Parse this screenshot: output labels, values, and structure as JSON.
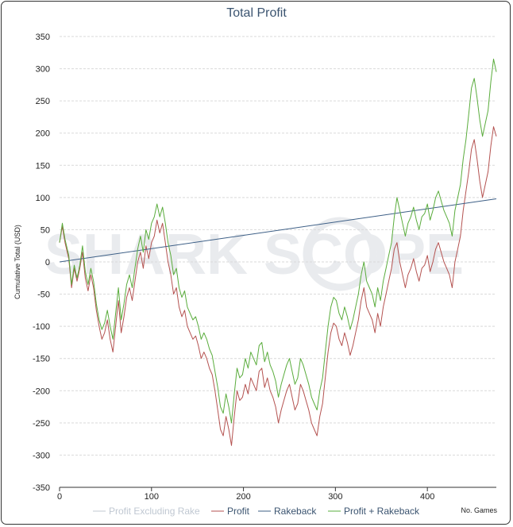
{
  "watermark": "SHARK SCOPE",
  "chart_data": {
    "type": "line",
    "title": "Total Profit",
    "ylabel": "Cumulative Total (USD)",
    "xlabel": "No. Games",
    "xlim": [
      0,
      475
    ],
    "ylim": [
      -350,
      350
    ],
    "xticks": [
      0,
      100,
      200,
      300,
      400
    ],
    "yticks": [
      -350,
      -300,
      -250,
      -200,
      -150,
      -100,
      -50,
      0,
      50,
      100,
      150,
      200,
      250,
      300,
      350
    ],
    "grid": true,
    "legend_position": "bottom",
    "series": [
      {
        "name": "Profit Excluding Rake",
        "color": "#c0c8d2",
        "visible": false,
        "points": []
      },
      {
        "name": "Profit",
        "color": "#b45250",
        "points": [
          [
            0,
            30
          ],
          [
            3,
            55
          ],
          [
            6,
            30
          ],
          [
            10,
            5
          ],
          [
            13,
            -40
          ],
          [
            16,
            -10
          ],
          [
            19,
            -30
          ],
          [
            22,
            -10
          ],
          [
            25,
            15
          ],
          [
            28,
            -25
          ],
          [
            31,
            -45
          ],
          [
            34,
            -20
          ],
          [
            37,
            -40
          ],
          [
            40,
            -75
          ],
          [
            43,
            -100
          ],
          [
            46,
            -120
          ],
          [
            49,
            -110
          ],
          [
            52,
            -90
          ],
          [
            55,
            -120
          ],
          [
            58,
            -140
          ],
          [
            61,
            -100
          ],
          [
            64,
            -60
          ],
          [
            67,
            -110
          ],
          [
            70,
            -85
          ],
          [
            73,
            -55
          ],
          [
            76,
            -40
          ],
          [
            79,
            -60
          ],
          [
            82,
            -30
          ],
          [
            85,
            0
          ],
          [
            88,
            15
          ],
          [
            91,
            -10
          ],
          [
            94,
            25
          ],
          [
            97,
            5
          ],
          [
            100,
            30
          ],
          [
            103,
            40
          ],
          [
            106,
            65
          ],
          [
            109,
            45
          ],
          [
            112,
            60
          ],
          [
            115,
            30
          ],
          [
            118,
            0
          ],
          [
            121,
            -20
          ],
          [
            124,
            -50
          ],
          [
            127,
            -40
          ],
          [
            130,
            -70
          ],
          [
            133,
            -85
          ],
          [
            136,
            -75
          ],
          [
            139,
            -100
          ],
          [
            142,
            -110
          ],
          [
            145,
            -120
          ],
          [
            148,
            -115
          ],
          [
            151,
            -130
          ],
          [
            154,
            -150
          ],
          [
            157,
            -140
          ],
          [
            160,
            -150
          ],
          [
            163,
            -165
          ],
          [
            166,
            -175
          ],
          [
            169,
            -200
          ],
          [
            172,
            -230
          ],
          [
            175,
            -260
          ],
          [
            178,
            -270
          ],
          [
            181,
            -240
          ],
          [
            184,
            -260
          ],
          [
            187,
            -285
          ],
          [
            190,
            -240
          ],
          [
            193,
            -200
          ],
          [
            196,
            -215
          ],
          [
            199,
            -210
          ],
          [
            202,
            -190
          ],
          [
            205,
            -205
          ],
          [
            208,
            -180
          ],
          [
            211,
            -190
          ],
          [
            214,
            -200
          ],
          [
            217,
            -170
          ],
          [
            220,
            -165
          ],
          [
            223,
            -195
          ],
          [
            226,
            -180
          ],
          [
            229,
            -200
          ],
          [
            232,
            -210
          ],
          [
            235,
            -225
          ],
          [
            238,
            -250
          ],
          [
            241,
            -230
          ],
          [
            244,
            -215
          ],
          [
            247,
            -200
          ],
          [
            250,
            -190
          ],
          [
            253,
            -210
          ],
          [
            256,
            -230
          ],
          [
            259,
            -220
          ],
          [
            262,
            -190
          ],
          [
            265,
            -200
          ],
          [
            268,
            -215
          ],
          [
            271,
            -230
          ],
          [
            274,
            -250
          ],
          [
            277,
            -260
          ],
          [
            280,
            -270
          ],
          [
            283,
            -240
          ],
          [
            286,
            -220
          ],
          [
            289,
            -180
          ],
          [
            292,
            -140
          ],
          [
            295,
            -110
          ],
          [
            298,
            -95
          ],
          [
            301,
            -100
          ],
          [
            304,
            -120
          ],
          [
            307,
            -130
          ],
          [
            310,
            -110
          ],
          [
            313,
            -125
          ],
          [
            316,
            -145
          ],
          [
            319,
            -130
          ],
          [
            322,
            -110
          ],
          [
            325,
            -90
          ],
          [
            328,
            -60
          ],
          [
            331,
            -40
          ],
          [
            334,
            -70
          ],
          [
            337,
            -80
          ],
          [
            340,
            -90
          ],
          [
            343,
            -110
          ],
          [
            346,
            -80
          ],
          [
            349,
            -100
          ],
          [
            352,
            -70
          ],
          [
            355,
            -50
          ],
          [
            358,
            -30
          ],
          [
            361,
            -10
          ],
          [
            364,
            20
          ],
          [
            367,
            30
          ],
          [
            370,
            0
          ],
          [
            373,
            -20
          ],
          [
            376,
            -40
          ],
          [
            379,
            -20
          ],
          [
            382,
            -10
          ],
          [
            385,
            5
          ],
          [
            388,
            -15
          ],
          [
            391,
            -30
          ],
          [
            394,
            -10
          ],
          [
            397,
            -5
          ],
          [
            400,
            10
          ],
          [
            403,
            -15
          ],
          [
            406,
            0
          ],
          [
            409,
            20
          ],
          [
            412,
            30
          ],
          [
            415,
            15
          ],
          [
            418,
            0
          ],
          [
            421,
            -10
          ],
          [
            424,
            -20
          ],
          [
            427,
            -40
          ],
          [
            430,
            0
          ],
          [
            433,
            20
          ],
          [
            436,
            40
          ],
          [
            439,
            80
          ],
          [
            442,
            110
          ],
          [
            445,
            140
          ],
          [
            448,
            175
          ],
          [
            451,
            190
          ],
          [
            454,
            160
          ],
          [
            457,
            125
          ],
          [
            460,
            100
          ],
          [
            463,
            120
          ],
          [
            466,
            140
          ],
          [
            469,
            180
          ],
          [
            472,
            210
          ],
          [
            475,
            195
          ]
        ]
      },
      {
        "name": "Rakeback",
        "color": "#3d5f86",
        "points": [
          [
            0,
            0
          ],
          [
            475,
            98
          ]
        ]
      },
      {
        "name": "Profit + Rakeback",
        "color": "#5aac3c",
        "points": [
          [
            0,
            30
          ],
          [
            3,
            60
          ],
          [
            6,
            35
          ],
          [
            10,
            10
          ],
          [
            13,
            -35
          ],
          [
            16,
            -5
          ],
          [
            19,
            -25
          ],
          [
            22,
            -5
          ],
          [
            25,
            25
          ],
          [
            28,
            -15
          ],
          [
            31,
            -35
          ],
          [
            34,
            -10
          ],
          [
            37,
            -30
          ],
          [
            40,
            -65
          ],
          [
            43,
            -90
          ],
          [
            46,
            -105
          ],
          [
            49,
            -95
          ],
          [
            52,
            -75
          ],
          [
            55,
            -100
          ],
          [
            58,
            -120
          ],
          [
            61,
            -80
          ],
          [
            64,
            -40
          ],
          [
            67,
            -90
          ],
          [
            70,
            -65
          ],
          [
            73,
            -35
          ],
          [
            76,
            -20
          ],
          [
            79,
            -40
          ],
          [
            82,
            -10
          ],
          [
            85,
            20
          ],
          [
            88,
            40
          ],
          [
            91,
            15
          ],
          [
            94,
            50
          ],
          [
            97,
            35
          ],
          [
            100,
            60
          ],
          [
            103,
            70
          ],
          [
            106,
            90
          ],
          [
            109,
            70
          ],
          [
            112,
            85
          ],
          [
            115,
            60
          ],
          [
            118,
            30
          ],
          [
            121,
            10
          ],
          [
            124,
            -20
          ],
          [
            127,
            -10
          ],
          [
            130,
            -40
          ],
          [
            133,
            -55
          ],
          [
            136,
            -45
          ],
          [
            139,
            -70
          ],
          [
            142,
            -80
          ],
          [
            145,
            -90
          ],
          [
            148,
            -85
          ],
          [
            151,
            -100
          ],
          [
            154,
            -120
          ],
          [
            157,
            -110
          ],
          [
            160,
            -120
          ],
          [
            163,
            -135
          ],
          [
            166,
            -145
          ],
          [
            169,
            -170
          ],
          [
            172,
            -195
          ],
          [
            175,
            -225
          ],
          [
            178,
            -235
          ],
          [
            181,
            -205
          ],
          [
            184,
            -225
          ],
          [
            187,
            -250
          ],
          [
            190,
            -205
          ],
          [
            193,
            -165
          ],
          [
            196,
            -180
          ],
          [
            199,
            -175
          ],
          [
            202,
            -150
          ],
          [
            205,
            -165
          ],
          [
            208,
            -140
          ],
          [
            211,
            -150
          ],
          [
            214,
            -160
          ],
          [
            217,
            -130
          ],
          [
            220,
            -125
          ],
          [
            223,
            -155
          ],
          [
            226,
            -140
          ],
          [
            229,
            -160
          ],
          [
            232,
            -170
          ],
          [
            235,
            -185
          ],
          [
            238,
            -210
          ],
          [
            241,
            -190
          ],
          [
            244,
            -175
          ],
          [
            247,
            -160
          ],
          [
            250,
            -150
          ],
          [
            253,
            -170
          ],
          [
            256,
            -190
          ],
          [
            259,
            -180
          ],
          [
            262,
            -150
          ],
          [
            265,
            -160
          ],
          [
            268,
            -175
          ],
          [
            271,
            -190
          ],
          [
            274,
            -210
          ],
          [
            277,
            -220
          ],
          [
            280,
            -230
          ],
          [
            283,
            -200
          ],
          [
            286,
            -180
          ],
          [
            289,
            -140
          ],
          [
            292,
            -100
          ],
          [
            295,
            -70
          ],
          [
            298,
            -55
          ],
          [
            301,
            -60
          ],
          [
            304,
            -80
          ],
          [
            307,
            -90
          ],
          [
            310,
            -70
          ],
          [
            313,
            -85
          ],
          [
            316,
            -105
          ],
          [
            319,
            -90
          ],
          [
            322,
            -70
          ],
          [
            325,
            -50
          ],
          [
            328,
            -20
          ],
          [
            331,
            0
          ],
          [
            334,
            -30
          ],
          [
            337,
            -40
          ],
          [
            340,
            -50
          ],
          [
            343,
            -70
          ],
          [
            346,
            -40
          ],
          [
            349,
            -60
          ],
          [
            352,
            -30
          ],
          [
            355,
            -10
          ],
          [
            358,
            10
          ],
          [
            361,
            30
          ],
          [
            364,
            70
          ],
          [
            367,
            100
          ],
          [
            370,
            80
          ],
          [
            373,
            60
          ],
          [
            376,
            40
          ],
          [
            379,
            60
          ],
          [
            382,
            70
          ],
          [
            385,
            85
          ],
          [
            388,
            65
          ],
          [
            391,
            50
          ],
          [
            394,
            70
          ],
          [
            397,
            75
          ],
          [
            400,
            90
          ],
          [
            403,
            65
          ],
          [
            406,
            80
          ],
          [
            409,
            100
          ],
          [
            412,
            110
          ],
          [
            415,
            95
          ],
          [
            418,
            80
          ],
          [
            421,
            70
          ],
          [
            424,
            60
          ],
          [
            427,
            40
          ],
          [
            430,
            80
          ],
          [
            433,
            100
          ],
          [
            436,
            120
          ],
          [
            439,
            160
          ],
          [
            442,
            190
          ],
          [
            445,
            230
          ],
          [
            448,
            270
          ],
          [
            451,
            285
          ],
          [
            454,
            255
          ],
          [
            457,
            220
          ],
          [
            460,
            195
          ],
          [
            463,
            215
          ],
          [
            466,
            235
          ],
          [
            469,
            280
          ],
          [
            472,
            315
          ],
          [
            475,
            295
          ]
        ]
      }
    ]
  }
}
